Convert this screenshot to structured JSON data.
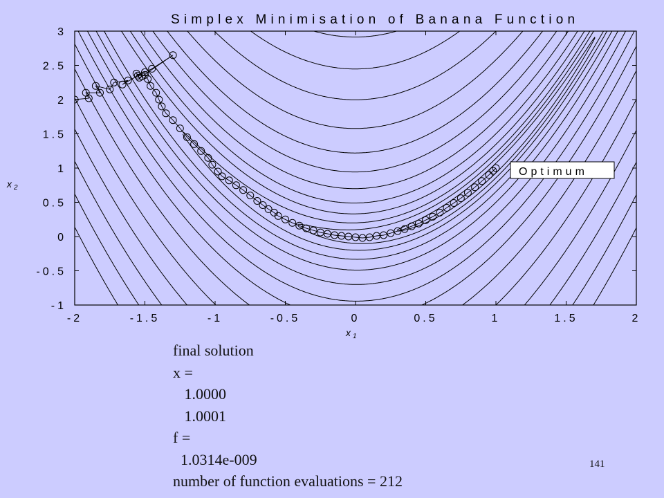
{
  "chart_data": {
    "type": "scatter",
    "title": "Simplex Minimisation of Banana Function",
    "xlabel": "x",
    "xlabel_sub": "1",
    "ylabel": "x",
    "ylabel_sub": "2",
    "xlim": [
      -2,
      2
    ],
    "ylim": [
      -1,
      3
    ],
    "xticks": [
      -2,
      -1.5,
      -1,
      -0.5,
      0,
      0.5,
      1,
      1.5,
      2
    ],
    "xtick_labels": [
      "-2",
      "-1.5",
      "-1",
      "-0.5",
      "0",
      "0.5",
      "1",
      "1.5",
      "2"
    ],
    "yticks": [
      -1,
      -0.5,
      0,
      0.5,
      1,
      1.5,
      2,
      2.5,
      3
    ],
    "ytick_labels": [
      "-1",
      "-0.5",
      "0",
      "0.5",
      "1",
      "1.5",
      "2",
      "2.5",
      "3"
    ],
    "contour_levels": [
      0.5,
      2,
      5,
      12,
      25,
      50,
      90,
      150,
      250,
      400,
      600,
      850,
      1150,
      1500
    ],
    "grid": false,
    "annotation": {
      "text": "Optimum",
      "x": 1,
      "y": 1
    },
    "series": [
      {
        "points": [
          [
            -2.0,
            2.0
          ],
          [
            -1.9,
            2.02
          ],
          [
            -1.92,
            2.1
          ],
          [
            -1.82,
            2.1
          ],
          [
            -1.85,
            2.2
          ],
          [
            -1.75,
            2.15
          ],
          [
            -1.72,
            2.25
          ],
          [
            -1.62,
            2.28
          ],
          [
            -1.66,
            2.22
          ],
          [
            -1.55,
            2.35
          ],
          [
            -1.5,
            2.4
          ],
          [
            -1.45,
            2.45
          ],
          [
            -1.3,
            2.65
          ],
          [
            -1.52,
            2.34
          ],
          [
            -1.56,
            2.38
          ],
          [
            -1.54,
            2.32
          ],
          [
            -1.5,
            2.36
          ],
          [
            -1.48,
            2.3
          ],
          [
            -1.46,
            2.2
          ],
          [
            -1.42,
            2.1
          ],
          [
            -1.4,
            2.0
          ],
          [
            -1.38,
            1.9
          ],
          [
            -1.35,
            1.8
          ],
          [
            -1.3,
            1.7
          ],
          [
            -1.25,
            1.58
          ],
          [
            -1.2,
            1.45
          ],
          [
            -1.15,
            1.35
          ],
          [
            -1.1,
            1.25
          ],
          [
            -1.05,
            1.15
          ],
          [
            -1.02,
            1.05
          ],
          [
            -0.98,
            0.95
          ],
          [
            -0.95,
            0.88
          ],
          [
            -0.9,
            0.82
          ],
          [
            -0.85,
            0.75
          ],
          [
            -0.8,
            0.68
          ],
          [
            -0.75,
            0.6
          ],
          [
            -0.7,
            0.52
          ],
          [
            -0.66,
            0.46
          ],
          [
            -0.62,
            0.4
          ],
          [
            -0.58,
            0.35
          ],
          [
            -0.55,
            0.3
          ],
          [
            -0.5,
            0.25
          ],
          [
            -0.45,
            0.2
          ],
          [
            -0.4,
            0.16
          ],
          [
            -0.35,
            0.12
          ],
          [
            -0.3,
            0.09
          ],
          [
            -0.25,
            0.06
          ],
          [
            -0.2,
            0.04
          ],
          [
            -0.15,
            0.02
          ],
          [
            -0.1,
            0.01
          ],
          [
            -0.05,
            0.0
          ],
          [
            0.0,
            -0.01
          ],
          [
            0.05,
            -0.02
          ],
          [
            0.1,
            -0.01
          ],
          [
            0.15,
            0.01
          ],
          [
            0.2,
            0.02
          ],
          [
            0.25,
            0.05
          ],
          [
            0.3,
            0.08
          ],
          [
            0.35,
            0.11
          ],
          [
            0.4,
            0.15
          ],
          [
            0.45,
            0.19
          ],
          [
            0.5,
            0.24
          ],
          [
            0.55,
            0.29
          ],
          [
            0.6,
            0.35
          ],
          [
            0.65,
            0.42
          ],
          [
            0.7,
            0.49
          ],
          [
            0.75,
            0.56
          ],
          [
            0.8,
            0.64
          ],
          [
            0.85,
            0.72
          ],
          [
            0.9,
            0.81
          ],
          [
            0.95,
            0.9
          ],
          [
            0.98,
            0.96
          ],
          [
            1.0,
            1.0
          ]
        ]
      }
    ]
  },
  "output_lines": [
    "final solution",
    "x =",
    "   1.0000",
    "   1.0001",
    "f =",
    "  1.0314e-009",
    "number of function evaluations = 212"
  ],
  "slide_number": "141"
}
